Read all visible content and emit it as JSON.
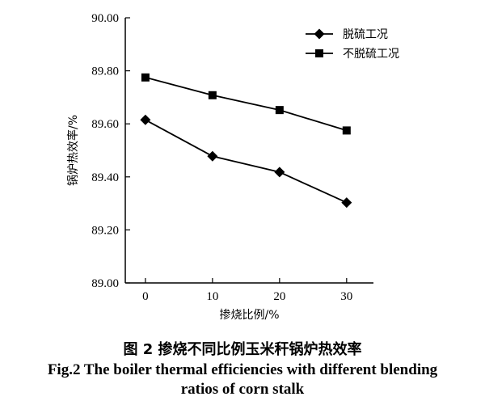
{
  "chart_data": {
    "type": "line",
    "xlabel": "掺烧比例/%",
    "ylabel": "锅炉热效率/%",
    "xlim": [
      -3,
      34
    ],
    "ylim": [
      89.0,
      90.0
    ],
    "x_ticks": [
      0,
      10,
      20,
      30
    ],
    "x_tick_labels": [
      "0",
      "10",
      "20",
      "30"
    ],
    "y_ticks": [
      89.0,
      89.2,
      89.4,
      89.6,
      89.8,
      90.0
    ],
    "y_tick_labels": [
      "89.00",
      "89.20",
      "89.40",
      "89.60",
      "89.80",
      "90.00"
    ],
    "x": [
      0,
      10,
      20,
      30
    ],
    "series": [
      {
        "name": "脱硫工况",
        "marker": "diamond",
        "values": [
          89.615,
          89.478,
          89.418,
          89.303
        ]
      },
      {
        "name": "不脱硫工况",
        "marker": "square",
        "values": [
          89.775,
          89.708,
          89.652,
          89.575
        ]
      }
    ],
    "legend_position": "top-right",
    "grid": false,
    "line_color": "#000000"
  },
  "caption": {
    "chinese": "图 2  掺烧不同比例玉米秆锅炉热效率",
    "english_line1": "Fig.2 The boiler thermal efficiencies with different blending",
    "english_line2": "ratios of corn stalk"
  }
}
